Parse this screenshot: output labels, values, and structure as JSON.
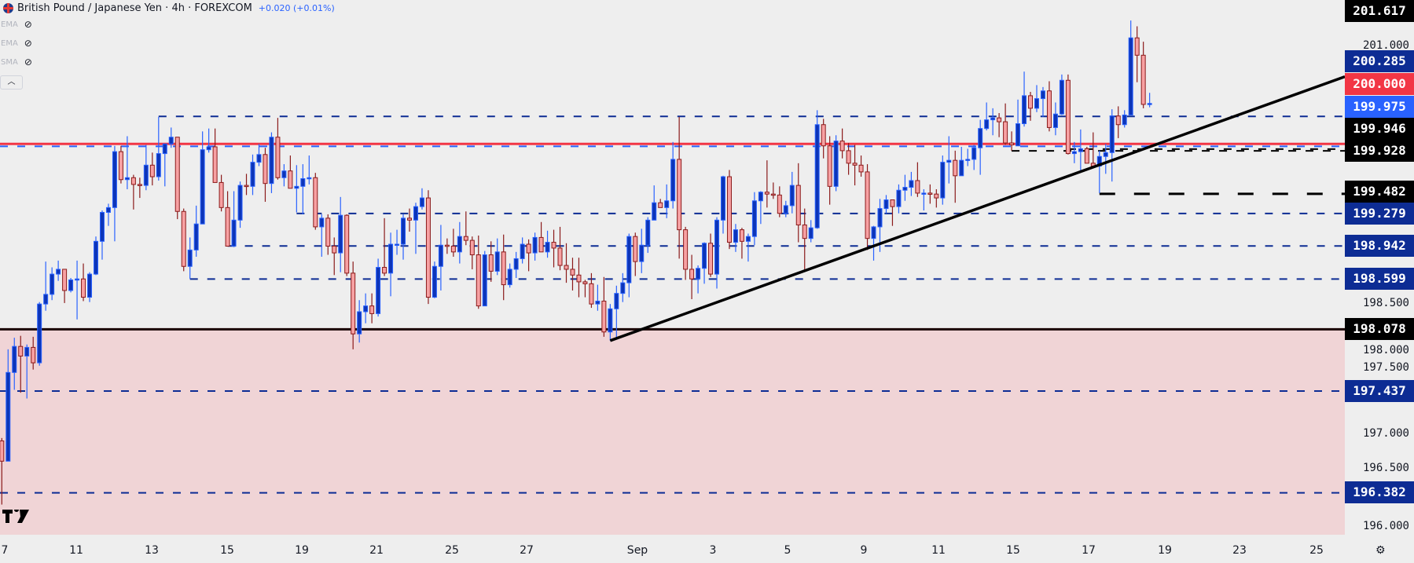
{
  "header": {
    "title": "British Pound / Japanese Yen · 4h · FOREXCOM",
    "change": "+0.020 (+0.01%)",
    "indicators": [
      {
        "label": "EMA",
        "icon": "eye-off-icon"
      },
      {
        "label": "EMA",
        "icon": "eye-off-icon"
      },
      {
        "label": "SMA",
        "icon": "eye-off-icon"
      }
    ],
    "collapse_icon": "chevron-up-icon"
  },
  "colors": {
    "background": "#eeeeee",
    "up_body": "#0d35b8",
    "up_border": "#2962ff",
    "down_body": "#f7a1a3",
    "down_border": "#8b1a1a",
    "level_dashed": "#0d2c94",
    "resistance": "#f23645",
    "support_zone": "#f0d4d6"
  },
  "chart_data": {
    "type": "candlestick",
    "symbol": "GBPJPY",
    "timeframe": "4h",
    "ylim": [
      195.9,
      201.98
    ],
    "y_ticks": [
      "201.000",
      "198.500",
      "198.000",
      "197.500",
      "197.000",
      "196.500",
      "196.000"
    ],
    "x_ticks": [
      "7",
      "11",
      "13",
      "15",
      "19",
      "21",
      "25",
      "27",
      "Sep",
      "3",
      "5",
      "9",
      "11",
      "15",
      "17",
      "19",
      "23",
      "25"
    ],
    "candles_ohlc": [
      [
        196.92,
        196.95,
        196.26,
        196.71
      ],
      [
        196.71,
        197.87,
        196.71,
        197.63
      ],
      [
        197.63,
        197.99,
        197.45,
        197.9
      ],
      [
        197.9,
        198.01,
        197.42,
        197.8
      ],
      [
        197.8,
        197.92,
        197.36,
        197.89
      ],
      [
        197.89,
        198.0,
        197.66,
        197.73
      ],
      [
        197.73,
        198.36,
        197.7,
        198.34
      ],
      [
        198.34,
        198.78,
        198.27,
        198.44
      ],
      [
        198.44,
        198.72,
        198.38,
        198.65
      ],
      [
        198.65,
        198.79,
        198.58,
        198.7
      ],
      [
        198.7,
        198.7,
        198.35,
        198.48
      ],
      [
        198.48,
        198.61,
        198.46,
        198.59
      ],
      [
        198.59,
        198.79,
        198.18,
        198.6
      ],
      [
        198.6,
        198.76,
        198.37,
        198.41
      ],
      [
        198.41,
        198.67,
        198.36,
        198.65
      ],
      [
        198.65,
        199.04,
        198.64,
        198.99
      ],
      [
        198.99,
        199.31,
        198.8,
        199.29
      ],
      [
        199.29,
        199.38,
        199.15,
        199.34
      ],
      [
        199.34,
        199.98,
        198.99,
        199.92
      ],
      [
        199.92,
        199.98,
        199.59,
        199.63
      ],
      [
        199.63,
        200.08,
        199.53,
        199.65
      ],
      [
        199.65,
        199.68,
        199.32,
        199.58
      ],
      [
        199.58,
        199.65,
        199.44,
        199.57
      ],
      [
        199.57,
        199.99,
        199.52,
        199.78
      ],
      [
        199.78,
        199.91,
        199.57,
        199.66
      ],
      [
        199.66,
        200.28,
        199.62,
        199.9
      ],
      [
        199.9,
        200.0,
        199.56,
        200.0
      ],
      [
        200.0,
        200.17,
        199.96,
        200.07
      ],
      [
        200.07,
        200.07,
        199.22,
        199.3
      ],
      [
        199.3,
        199.33,
        198.68,
        198.73
      ],
      [
        198.73,
        199.03,
        198.6,
        198.9
      ],
      [
        198.9,
        199.36,
        198.83,
        199.17
      ],
      [
        199.17,
        200.13,
        199.17,
        199.94
      ],
      [
        199.94,
        200.16,
        199.91,
        199.97
      ],
      [
        199.97,
        200.16,
        199.6,
        199.6
      ],
      [
        199.6,
        199.68,
        199.3,
        199.34
      ],
      [
        199.34,
        199.51,
        198.94,
        198.94
      ],
      [
        198.94,
        199.51,
        198.93,
        199.21
      ],
      [
        199.21,
        199.61,
        199.13,
        199.57
      ],
      [
        199.57,
        199.69,
        199.47,
        199.56
      ],
      [
        199.56,
        199.89,
        199.47,
        199.81
      ],
      [
        199.81,
        200.0,
        199.77,
        199.89
      ],
      [
        199.89,
        199.96,
        199.4,
        199.59
      ],
      [
        199.59,
        200.12,
        199.49,
        200.07
      ],
      [
        200.07,
        200.27,
        199.63,
        199.65
      ],
      [
        199.65,
        199.79,
        199.56,
        199.72
      ],
      [
        199.72,
        199.88,
        199.54,
        199.54
      ],
      [
        199.54,
        199.78,
        199.29,
        199.56
      ],
      [
        199.56,
        199.79,
        199.27,
        199.64
      ],
      [
        199.64,
        199.88,
        199.58,
        199.65
      ],
      [
        199.65,
        199.7,
        199.11,
        199.14
      ],
      [
        199.14,
        199.27,
        198.83,
        199.23
      ],
      [
        199.23,
        199.27,
        198.85,
        198.94
      ],
      [
        198.94,
        199.03,
        198.64,
        198.87
      ],
      [
        198.87,
        199.45,
        198.67,
        199.26
      ],
      [
        199.26,
        199.27,
        198.63,
        198.66
      ],
      [
        198.66,
        198.78,
        197.87,
        198.03
      ],
      [
        198.03,
        198.38,
        197.94,
        198.26
      ],
      [
        198.26,
        198.45,
        198.14,
        198.32
      ],
      [
        198.32,
        198.45,
        198.14,
        198.24
      ],
      [
        198.24,
        198.81,
        198.21,
        198.72
      ],
      [
        198.72,
        199.23,
        198.63,
        198.66
      ],
      [
        198.66,
        199.08,
        198.42,
        198.96
      ],
      [
        198.96,
        199.11,
        198.85,
        198.96
      ],
      [
        198.96,
        199.27,
        198.8,
        199.23
      ],
      [
        199.23,
        199.33,
        199.09,
        199.21
      ],
      [
        199.21,
        199.39,
        198.86,
        199.35
      ],
      [
        199.35,
        199.54,
        199.32,
        199.44
      ],
      [
        199.44,
        199.52,
        198.34,
        198.41
      ],
      [
        198.41,
        198.78,
        198.4,
        198.73
      ],
      [
        198.73,
        199.16,
        198.48,
        198.95
      ],
      [
        198.95,
        199.02,
        198.86,
        198.94
      ],
      [
        198.94,
        199.12,
        198.83,
        198.88
      ],
      [
        198.88,
        199.19,
        198.76,
        199.04
      ],
      [
        199.04,
        199.3,
        198.95,
        199.0
      ],
      [
        199.0,
        199.04,
        198.7,
        198.85
      ],
      [
        198.85,
        199.05,
        198.29,
        198.32
      ],
      [
        198.32,
        198.89,
        198.32,
        198.85
      ],
      [
        198.85,
        198.99,
        198.57,
        198.68
      ],
      [
        198.68,
        199.02,
        198.64,
        198.88
      ],
      [
        198.88,
        199.06,
        198.38,
        198.54
      ],
      [
        198.54,
        198.76,
        198.51,
        198.7
      ],
      [
        198.7,
        198.88,
        198.61,
        198.81
      ],
      [
        198.81,
        199.03,
        198.76,
        198.96
      ],
      [
        198.96,
        199.01,
        198.68,
        198.87
      ],
      [
        198.87,
        199.08,
        198.79,
        199.03
      ],
      [
        199.03,
        199.19,
        198.88,
        198.88
      ],
      [
        198.88,
        199.1,
        198.82,
        198.98
      ],
      [
        198.98,
        199.11,
        198.72,
        198.92
      ],
      [
        198.92,
        199.14,
        198.69,
        198.74
      ],
      [
        198.74,
        198.97,
        198.56,
        198.7
      ],
      [
        198.7,
        198.82,
        198.48,
        198.64
      ],
      [
        198.64,
        198.82,
        198.41,
        198.57
      ],
      [
        198.57,
        198.59,
        198.41,
        198.55
      ],
      [
        198.55,
        198.66,
        198.3,
        198.34
      ],
      [
        198.34,
        198.54,
        198.27,
        198.37
      ],
      [
        198.37,
        198.62,
        198.0,
        198.05
      ],
      [
        198.05,
        198.34,
        197.96,
        198.29
      ],
      [
        198.29,
        198.53,
        197.99,
        198.45
      ],
      [
        198.45,
        198.66,
        198.36,
        198.56
      ],
      [
        198.56,
        199.07,
        198.41,
        199.04
      ],
      [
        199.04,
        199.08,
        198.63,
        198.78
      ],
      [
        198.78,
        199.12,
        198.66,
        198.95
      ],
      [
        198.95,
        199.24,
        198.87,
        199.21
      ],
      [
        199.21,
        199.57,
        199.21,
        199.39
      ],
      [
        199.39,
        199.43,
        199.34,
        199.34
      ],
      [
        199.34,
        199.58,
        199.23,
        199.41
      ],
      [
        199.41,
        200.02,
        199.33,
        199.84
      ],
      [
        199.84,
        200.28,
        198.81,
        199.11
      ],
      [
        199.11,
        199.14,
        198.59,
        198.7
      ],
      [
        198.7,
        198.85,
        198.39,
        198.6
      ],
      [
        198.6,
        198.74,
        198.45,
        198.71
      ],
      [
        198.71,
        198.98,
        198.55,
        198.97
      ],
      [
        198.97,
        199.07,
        198.62,
        198.65
      ],
      [
        198.65,
        199.24,
        198.5,
        199.21
      ],
      [
        199.21,
        199.67,
        199.07,
        199.66
      ],
      [
        199.66,
        199.73,
        198.91,
        198.98
      ],
      [
        198.98,
        199.17,
        198.88,
        199.11
      ],
      [
        199.11,
        199.13,
        198.81,
        198.99
      ],
      [
        198.99,
        199.07,
        198.78,
        199.04
      ],
      [
        199.04,
        199.5,
        198.95,
        199.41
      ],
      [
        199.41,
        199.51,
        199.17,
        199.5
      ],
      [
        199.5,
        199.83,
        199.34,
        199.48
      ],
      [
        199.48,
        199.6,
        199.43,
        199.47
      ],
      [
        199.47,
        199.56,
        199.24,
        199.28
      ],
      [
        199.28,
        199.41,
        199.24,
        199.36
      ],
      [
        199.36,
        199.71,
        199.28,
        199.57
      ],
      [
        199.57,
        199.8,
        198.98,
        199.16
      ],
      [
        199.16,
        199.33,
        198.68,
        199.02
      ],
      [
        199.02,
        199.21,
        198.98,
        199.13
      ],
      [
        199.13,
        200.35,
        199.12,
        200.2
      ],
      [
        200.2,
        200.26,
        199.85,
        199.98
      ],
      [
        199.98,
        200.08,
        199.37,
        199.56
      ],
      [
        199.56,
        200.09,
        199.51,
        200.03
      ],
      [
        200.03,
        200.16,
        199.85,
        199.93
      ],
      [
        199.93,
        200.01,
        199.68,
        199.8
      ],
      [
        199.8,
        199.99,
        199.57,
        199.78
      ],
      [
        199.78,
        199.88,
        199.66,
        199.71
      ],
      [
        199.71,
        199.79,
        198.9,
        199.02
      ],
      [
        199.02,
        199.15,
        198.79,
        199.14
      ],
      [
        199.14,
        199.43,
        198.88,
        199.33
      ],
      [
        199.33,
        199.47,
        199.28,
        199.42
      ],
      [
        199.42,
        199.42,
        199.15,
        199.35
      ],
      [
        199.35,
        199.58,
        199.28,
        199.52
      ],
      [
        199.52,
        199.68,
        199.41,
        199.55
      ],
      [
        199.55,
        199.71,
        199.46,
        199.62
      ],
      [
        199.62,
        199.81,
        199.45,
        199.49
      ],
      [
        199.49,
        199.53,
        199.31,
        199.49
      ],
      [
        199.49,
        199.58,
        199.38,
        199.48
      ],
      [
        199.48,
        199.53,
        199.34,
        199.44
      ],
      [
        199.44,
        199.88,
        199.37,
        199.81
      ],
      [
        199.81,
        200.08,
        199.59,
        199.83
      ],
      [
        199.83,
        199.93,
        199.39,
        199.67
      ],
      [
        199.67,
        199.97,
        199.67,
        199.83
      ],
      [
        199.83,
        199.95,
        199.77,
        199.84
      ],
      [
        199.84,
        199.99,
        199.73,
        199.96
      ],
      [
        199.96,
        200.25,
        199.68,
        200.16
      ],
      [
        200.16,
        200.43,
        200.14,
        200.25
      ],
      [
        200.25,
        200.37,
        200.09,
        200.27
      ],
      [
        200.27,
        200.32,
        200.07,
        200.23
      ],
      [
        200.23,
        200.42,
        199.99,
        200.01
      ],
      [
        200.01,
        200.13,
        199.93,
        199.99
      ],
      [
        199.98,
        200.46,
        199.98,
        200.21
      ],
      [
        200.21,
        200.75,
        200.18,
        200.5
      ],
      [
        200.5,
        200.54,
        200.24,
        200.37
      ],
      [
        200.37,
        200.61,
        200.33,
        200.47
      ],
      [
        200.47,
        200.59,
        200.28,
        200.55
      ],
      [
        200.55,
        200.65,
        200.13,
        200.17
      ],
      [
        200.17,
        200.43,
        200.09,
        200.31
      ],
      [
        200.31,
        200.72,
        200.3,
        200.66
      ],
      [
        200.66,
        200.72,
        199.89,
        199.9
      ],
      [
        199.9,
        200.02,
        199.8,
        199.92
      ],
      [
        199.92,
        200.15,
        199.71,
        199.95
      ],
      [
        199.95,
        199.97,
        199.8,
        199.8
      ],
      [
        199.8,
        200.12,
        199.76,
        199.77
      ],
      [
        199.77,
        199.93,
        199.49,
        199.87
      ],
      [
        199.87,
        200.0,
        199.69,
        199.91
      ],
      [
        199.91,
        200.36,
        199.61,
        200.29
      ],
      [
        200.29,
        200.39,
        200.06,
        200.2
      ],
      [
        200.2,
        200.35,
        200.17,
        200.3
      ],
      [
        200.3,
        201.28,
        200.3,
        201.1
      ],
      [
        201.1,
        201.22,
        200.64,
        200.92
      ],
      [
        200.92,
        201.06,
        200.37,
        200.41
      ],
      [
        200.41,
        200.53,
        200.38,
        200.42
      ]
    ],
    "levels": [
      {
        "price": 200.285,
        "style": "dashed",
        "color": "#0d2c94",
        "from_bar": 25
      },
      {
        "price": 200.0,
        "style": "solid",
        "color": "#f23645",
        "from_bar": 0
      },
      {
        "price": 199.975,
        "style": "dashed",
        "color": "#2962ff",
        "from_bar": 0
      },
      {
        "price": 199.946,
        "style": "dashed",
        "color": "#000000",
        "from_bar": 170
      },
      {
        "price": 199.928,
        "style": "dashed",
        "color": "#000000",
        "from_bar": 161
      },
      {
        "price": 199.482,
        "style": "dashed-thick",
        "color": "#000000",
        "from_bar": 175
      },
      {
        "price": 199.279,
        "style": "dashed",
        "color": "#0d2c94",
        "from_bar": 47
      },
      {
        "price": 198.942,
        "style": "dashed",
        "color": "#0d2c94",
        "from_bar": 36
      },
      {
        "price": 198.599,
        "style": "dashed",
        "color": "#0d2c94",
        "from_bar": 30
      },
      {
        "price": 198.078,
        "style": "solid",
        "color": "#1a0505",
        "from_bar": 0
      },
      {
        "price": 197.437,
        "style": "dashed",
        "color": "#0d2c94",
        "from_bar": 0
      },
      {
        "price": 196.382,
        "style": "dashed",
        "color": "#0d2c94",
        "from_bar": 0
      }
    ],
    "zone": {
      "from_price": 198.078,
      "to_price": 195.9,
      "color": "#f0d4d6"
    },
    "trendline": {
      "points": [
        [
          97,
          197.96
        ],
        [
          183,
          199.97
        ]
      ],
      "extend": "right",
      "color": "#000000"
    },
    "price_labels": [
      {
        "text": "201.617",
        "bg": "#000000",
        "fg": "#ffffff"
      },
      {
        "text": "200.285",
        "bg": "#0d2c94",
        "fg": "#ffffff"
      },
      {
        "text": "200.000",
        "bg": "#f23645",
        "fg": "#ffffff"
      },
      {
        "text": "199.975",
        "bg": "#2962ff",
        "fg": "#ffffff"
      },
      {
        "text": "199.946",
        "bg": "#000000",
        "fg": "#ffffff"
      },
      {
        "text": "199.928",
        "bg": "#000000",
        "fg": "#ffffff"
      },
      {
        "text": "199.482",
        "bg": "#000000",
        "fg": "#ffffff"
      },
      {
        "text": "199.279",
        "bg": "#0d2c94",
        "fg": "#ffffff"
      },
      {
        "text": "198.942",
        "bg": "#0d2c94",
        "fg": "#ffffff"
      },
      {
        "text": "198.599",
        "bg": "#0d2c94",
        "fg": "#ffffff"
      },
      {
        "text": "198.078",
        "bg": "#000000",
        "fg": "#ffffff"
      },
      {
        "text": "197.437",
        "bg": "#0d2c94",
        "fg": "#ffffff"
      },
      {
        "text": "196.382",
        "bg": "#0d2c94",
        "fg": "#ffffff"
      }
    ]
  },
  "footer": {
    "logo": "TV",
    "settings_icon": "gear-icon"
  }
}
